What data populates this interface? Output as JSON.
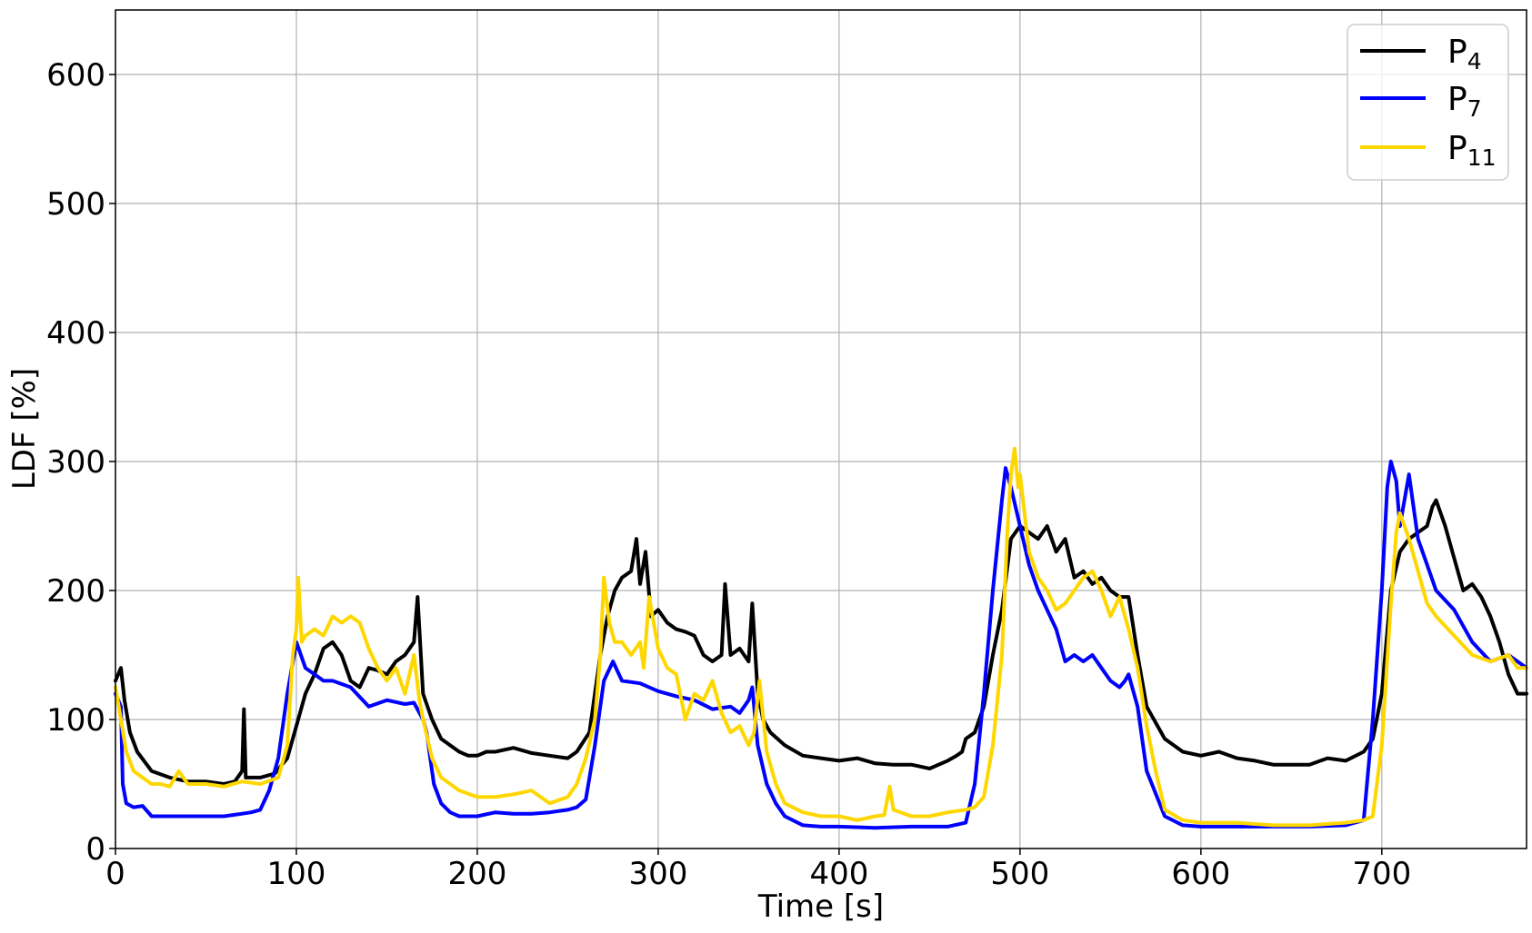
{
  "chart_data": {
    "type": "line",
    "title": "",
    "xlabel": "Time [s]",
    "ylabel": "LDF [%]",
    "xlim": [
      0,
      780
    ],
    "ylim": [
      0,
      650
    ],
    "xticks": [
      0,
      100,
      200,
      300,
      400,
      500,
      600,
      700
    ],
    "yticks": [
      0,
      100,
      200,
      300,
      400,
      500,
      600
    ],
    "grid": true,
    "legend_position": "top-right",
    "series": [
      {
        "name": "P4",
        "legend_main": "P",
        "legend_sub": "4",
        "color": "#000000",
        "x": [
          0,
          3,
          5,
          8,
          12,
          20,
          30,
          40,
          50,
          60,
          66,
          70,
          71,
          72,
          75,
          80,
          88,
          95,
          100,
          105,
          110,
          115,
          120,
          125,
          130,
          135,
          140,
          145,
          150,
          155,
          160,
          165,
          167,
          170,
          175,
          180,
          185,
          190,
          195,
          200,
          205,
          210,
          220,
          230,
          240,
          250,
          255,
          262,
          268,
          272,
          276,
          280,
          285,
          288,
          290,
          293,
          296,
          300,
          305,
          310,
          315,
          320,
          325,
          330,
          335,
          337,
          340,
          345,
          350,
          352,
          355,
          358,
          362,
          370,
          380,
          390,
          400,
          410,
          420,
          430,
          440,
          450,
          460,
          465,
          468,
          470,
          475,
          480,
          485,
          490,
          495,
          500,
          505,
          510,
          515,
          520,
          525,
          530,
          535,
          540,
          545,
          550,
          555,
          560,
          565,
          570,
          580,
          590,
          600,
          610,
          620,
          630,
          640,
          650,
          660,
          670,
          680,
          690,
          695,
          700,
          705,
          710,
          715,
          720,
          725,
          728,
          730,
          735,
          740,
          745,
          750,
          755,
          760,
          765,
          770,
          775,
          780
        ],
        "y": [
          130,
          140,
          115,
          90,
          75,
          60,
          55,
          52,
          52,
          50,
          52,
          60,
          108,
          55,
          55,
          55,
          58,
          70,
          95,
          120,
          135,
          155,
          160,
          150,
          130,
          125,
          140,
          138,
          135,
          145,
          150,
          160,
          195,
          120,
          100,
          85,
          80,
          75,
          72,
          72,
          75,
          75,
          78,
          74,
          72,
          70,
          75,
          90,
          150,
          180,
          200,
          210,
          215,
          240,
          205,
          230,
          180,
          185,
          175,
          170,
          168,
          165,
          150,
          145,
          150,
          205,
          150,
          155,
          145,
          190,
          120,
          100,
          90,
          80,
          72,
          70,
          68,
          70,
          66,
          65,
          65,
          62,
          68,
          72,
          75,
          85,
          90,
          110,
          150,
          185,
          240,
          250,
          245,
          240,
          250,
          230,
          240,
          210,
          215,
          205,
          210,
          200,
          195,
          195,
          150,
          110,
          85,
          75,
          72,
          75,
          70,
          68,
          65,
          65,
          65,
          70,
          68,
          75,
          85,
          120,
          200,
          230,
          240,
          245,
          250,
          265,
          270,
          250,
          225,
          200,
          205,
          195,
          180,
          160,
          135,
          120,
          120
        ]
      },
      {
        "name": "P7",
        "legend_main": "P",
        "legend_sub": "7",
        "color": "#0000ff",
        "x": [
          0,
          3,
          4,
          6,
          10,
          15,
          20,
          30,
          40,
          50,
          60,
          70,
          75,
          80,
          85,
          90,
          95,
          100,
          105,
          110,
          115,
          120,
          130,
          140,
          150,
          160,
          165,
          170,
          172,
          176,
          180,
          185,
          190,
          200,
          210,
          220,
          230,
          240,
          250,
          255,
          260,
          265,
          270,
          275,
          280,
          290,
          300,
          310,
          320,
          330,
          340,
          345,
          350,
          352,
          355,
          360,
          365,
          370,
          380,
          390,
          400,
          420,
          440,
          460,
          470,
          475,
          480,
          485,
          490,
          492,
          495,
          500,
          505,
          510,
          515,
          520,
          525,
          530,
          535,
          540,
          545,
          550,
          555,
          558,
          560,
          565,
          570,
          580,
          590,
          600,
          620,
          640,
          660,
          680,
          690,
          695,
          700,
          703,
          705,
          708,
          710,
          715,
          720,
          725,
          730,
          740,
          750,
          760,
          770,
          775,
          780
        ],
        "y": [
          120,
          110,
          50,
          35,
          32,
          33,
          25,
          25,
          25,
          25,
          25,
          27,
          28,
          30,
          45,
          70,
          120,
          160,
          140,
          135,
          130,
          130,
          125,
          110,
          115,
          112,
          113,
          100,
          90,
          50,
          35,
          28,
          25,
          25,
          28,
          27,
          27,
          28,
          30,
          32,
          38,
          80,
          130,
          145,
          130,
          128,
          122,
          118,
          115,
          108,
          110,
          105,
          115,
          125,
          80,
          50,
          35,
          25,
          18,
          17,
          17,
          16,
          17,
          17,
          20,
          50,
          120,
          200,
          270,
          295,
          280,
          250,
          220,
          200,
          185,
          170,
          145,
          150,
          145,
          150,
          140,
          130,
          125,
          130,
          135,
          110,
          60,
          25,
          18,
          17,
          17,
          17,
          17,
          18,
          22,
          100,
          200,
          280,
          300,
          285,
          250,
          290,
          240,
          220,
          200,
          185,
          160,
          145,
          150,
          145,
          140
        ]
      },
      {
        "name": "P11",
        "legend_main": "P",
        "legend_sub": "11",
        "color": "#ffd700",
        "x": [
          0,
          3,
          6,
          10,
          15,
          20,
          25,
          30,
          35,
          40,
          50,
          60,
          70,
          80,
          90,
          95,
          98,
          100,
          101,
          103,
          105,
          110,
          115,
          120,
          125,
          130,
          135,
          140,
          145,
          150,
          155,
          160,
          165,
          168,
          170,
          175,
          180,
          190,
          200,
          210,
          220,
          230,
          240,
          250,
          255,
          260,
          265,
          268,
          270,
          273,
          276,
          280,
          285,
          290,
          292,
          295,
          300,
          305,
          310,
          315,
          320,
          325,
          330,
          335,
          340,
          345,
          350,
          353,
          356,
          360,
          365,
          370,
          380,
          390,
          400,
          410,
          420,
          425,
          428,
          430,
          440,
          450,
          460,
          470,
          475,
          480,
          485,
          490,
          493,
          495,
          497,
          499,
          500,
          505,
          510,
          515,
          520,
          525,
          530,
          535,
          540,
          545,
          550,
          555,
          560,
          565,
          570,
          575,
          580,
          590,
          600,
          620,
          640,
          660,
          680,
          690,
          695,
          700,
          705,
          708,
          710,
          715,
          720,
          725,
          730,
          740,
          750,
          760,
          770,
          775,
          780
        ],
        "y": [
          125,
          100,
          75,
          60,
          55,
          50,
          50,
          48,
          60,
          50,
          50,
          48,
          52,
          50,
          55,
          80,
          150,
          170,
          210,
          160,
          165,
          170,
          165,
          180,
          175,
          180,
          175,
          155,
          140,
          130,
          140,
          120,
          150,
          115,
          100,
          70,
          55,
          45,
          40,
          40,
          42,
          45,
          35,
          40,
          50,
          70,
          100,
          150,
          210,
          175,
          160,
          160,
          150,
          160,
          140,
          195,
          155,
          140,
          135,
          100,
          120,
          115,
          130,
          105,
          90,
          95,
          80,
          90,
          130,
          75,
          50,
          35,
          28,
          25,
          25,
          22,
          25,
          26,
          48,
          30,
          25,
          25,
          28,
          30,
          32,
          40,
          80,
          150,
          245,
          290,
          310,
          280,
          290,
          230,
          210,
          200,
          185,
          190,
          200,
          210,
          215,
          200,
          180,
          195,
          170,
          140,
          95,
          60,
          30,
          22,
          20,
          20,
          18,
          18,
          20,
          22,
          25,
          80,
          190,
          245,
          260,
          240,
          215,
          190,
          180,
          165,
          150,
          145,
          150,
          140,
          140
        ]
      }
    ]
  }
}
